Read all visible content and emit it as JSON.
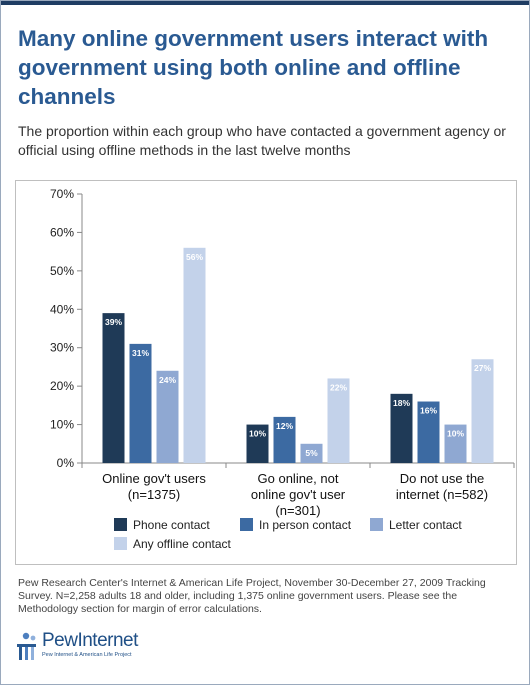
{
  "title": "Many online government users interact with government using both online and offline channels",
  "subtitle": "The proportion within each group who have contacted a government agency or official using offline methods in the last twelve months",
  "source": "Pew Research Center's Internet & American Life Project, November 30-December 27, 2009 Tracking Survey. N=2,258 adults 18 and older, including 1,375 online government users. Please see the Methodology section for margin of error calculations.",
  "logo": {
    "name": "PewInternet",
    "tagline": "Pew Internet & American Life Project"
  },
  "colors": {
    "title": "#2a5a92",
    "phone": "#1f3a57",
    "inperson": "#3c6aa2",
    "letter": "#8fa8d2",
    "anyoffline": "#c3d2ea"
  },
  "chart_data": {
    "type": "bar",
    "title": "",
    "xlabel": "",
    "ylabel": "",
    "ylim": [
      0,
      70
    ],
    "yticks": [
      "0%",
      "10%",
      "20%",
      "30%",
      "40%",
      "50%",
      "60%",
      "70%"
    ],
    "grid": false,
    "legend_position": "bottom",
    "categories": [
      [
        "Online gov't users",
        "(n=1375)"
      ],
      [
        "Go online, not",
        "online gov't user",
        "(n=301)"
      ],
      [
        "Do not use the",
        "internet (n=582)"
      ]
    ],
    "series": [
      {
        "name": "Phone contact",
        "color": "#1f3a57",
        "values": [
          39,
          10,
          18
        ],
        "labels": [
          "39%",
          "10%",
          "18%"
        ]
      },
      {
        "name": "In person contact",
        "color": "#3c6aa2",
        "values": [
          31,
          12,
          16
        ],
        "labels": [
          "31%",
          "12%",
          "16%"
        ]
      },
      {
        "name": "Letter contact",
        "color": "#8fa8d2",
        "values": [
          24,
          5,
          10
        ],
        "labels": [
          "24%",
          "5%",
          "10%"
        ]
      },
      {
        "name": "Any offline contact",
        "color": "#c3d2ea",
        "values": [
          56,
          22,
          27
        ],
        "labels": [
          "56%",
          "22%",
          "27%"
        ]
      }
    ]
  }
}
